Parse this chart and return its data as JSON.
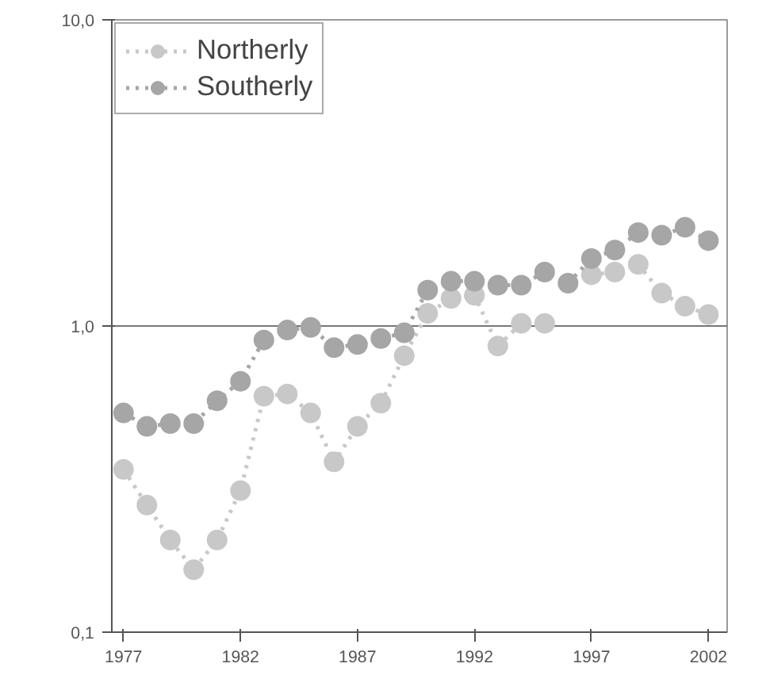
{
  "chart_data": {
    "type": "line",
    "x": [
      1977,
      1978,
      1979,
      1980,
      1981,
      1982,
      1983,
      1984,
      1985,
      1986,
      1987,
      1988,
      1989,
      1990,
      1991,
      1992,
      1993,
      1994,
      1995,
      1996,
      1997,
      1998,
      1999,
      2000,
      2001,
      2002
    ],
    "series": [
      {
        "name": "Northerly",
        "color": "#c8c8c8",
        "values": [
          0.34,
          0.26,
          0.2,
          0.16,
          0.2,
          0.29,
          0.59,
          0.6,
          0.52,
          0.36,
          0.47,
          0.56,
          0.8,
          1.1,
          1.23,
          1.26,
          0.86,
          1.02,
          1.02,
          null,
          1.47,
          1.5,
          1.59,
          1.28,
          1.16,
          1.09
        ]
      },
      {
        "name": "Southerly",
        "color": "#a6a6a6",
        "values": [
          0.52,
          0.47,
          0.48,
          0.48,
          0.57,
          0.66,
          0.9,
          0.97,
          0.99,
          0.85,
          0.87,
          0.91,
          0.95,
          1.31,
          1.4,
          1.4,
          1.36,
          1.36,
          1.5,
          1.38,
          1.66,
          1.77,
          2.02,
          1.98,
          2.1,
          1.9
        ]
      }
    ],
    "xlim": [
      1976.5,
      2002.8
    ],
    "xticks": [
      1977,
      1982,
      1987,
      1992,
      1997,
      2002
    ],
    "ylim": [
      0.1,
      10
    ],
    "yticks": [
      {
        "value": 0.1,
        "label": "0,1"
      },
      {
        "value": 1,
        "label": "1,0"
      },
      {
        "value": 10,
        "label": "10,0"
      }
    ],
    "log": true,
    "grid": "y",
    "legend": "top left",
    "marker": "circle",
    "line_style": "dotted"
  }
}
